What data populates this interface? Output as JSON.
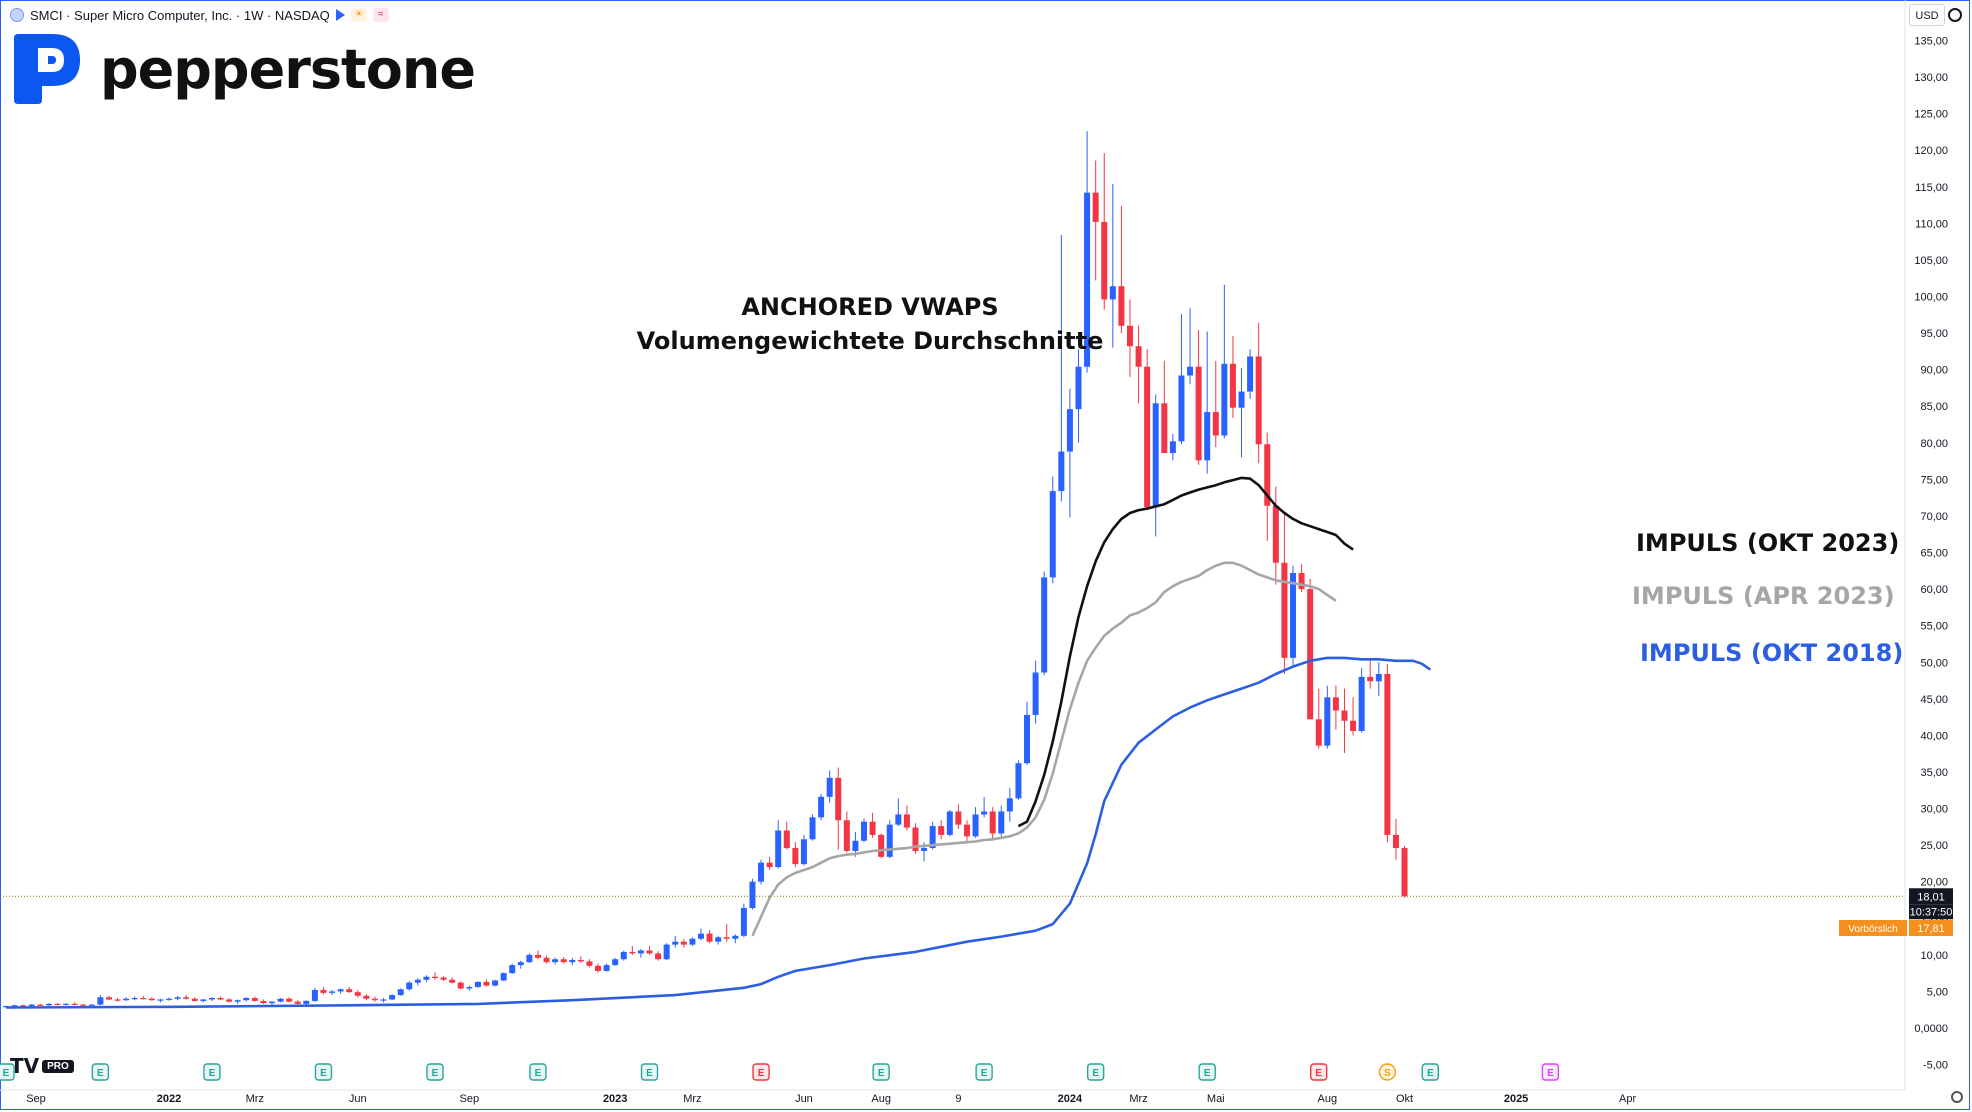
{
  "header": {
    "symbol_line": "SMCI · Super Micro Computer, Inc. · 1W · NASDAQ"
  },
  "brand": {
    "name": "pepperstone",
    "color": "#0c57f0"
  },
  "currency": "USD",
  "tradingview": {
    "mark": "TV",
    "badge": "PRO"
  },
  "title_lines": [
    "ANCHORED VWAPS",
    "Volumengewichtete Durchschnitte"
  ],
  "vwap_labels": [
    {
      "text": "IMPULS (OKT 2023)",
      "color": "#111111"
    },
    {
      "text": "IMPULS (APR 2023)",
      "color": "#a6a6a6"
    },
    {
      "text": "IMPULS (OKT 2018)",
      "color": "#2c5fe0"
    }
  ],
  "chart_data": {
    "type": "candlestick",
    "symbol": "SMCI",
    "interval": "1W",
    "exchange": "NASDAQ",
    "ylim": [
      -5,
      135
    ],
    "y_ticks": [
      "-5,00",
      "0,0000",
      "5,00",
      "10,00",
      "15,00",
      "20,00",
      "25,00",
      "30,00",
      "35,00",
      "40,00",
      "45,00",
      "50,00",
      "55,00",
      "60,00",
      "65,00",
      "70,00",
      "75,00",
      "80,00",
      "85,00",
      "90,00",
      "95,00",
      "100,00",
      "105,00",
      "110,00",
      "115,00",
      "120,00",
      "125,00",
      "130,00",
      "135,00"
    ],
    "x_ticks": [
      {
        "label": "Sep",
        "bar": 0
      },
      {
        "label": "2022",
        "bar": 19
      },
      {
        "label": "Mrz",
        "bar": 29
      },
      {
        "label": "Jun",
        "bar": 41
      },
      {
        "label": "Sep",
        "bar": 54
      },
      {
        "label": "2023",
        "bar": 71
      },
      {
        "label": "Mrz",
        "bar": 80
      },
      {
        "label": "Jun",
        "bar": 93
      },
      {
        "label": "Aug",
        "bar": 102
      },
      {
        "label": "9",
        "bar": 111
      },
      {
        "label": "2024",
        "bar": 124
      },
      {
        "label": "Mrz",
        "bar": 132
      },
      {
        "label": "Mai",
        "bar": 141
      },
      {
        "label": "Aug",
        "bar": 154
      },
      {
        "label": "Okt",
        "bar": 163
      },
      {
        "label": "2025",
        "bar": 176
      },
      {
        "label": "Apr",
        "bar": 189
      }
    ],
    "candles": [
      [
        2.9,
        3.1,
        2.8,
        3.0
      ],
      [
        3.0,
        3.2,
        2.9,
        3.1
      ],
      [
        3.1,
        3.2,
        2.9,
        3.0
      ],
      [
        3.0,
        3.3,
        2.9,
        3.2
      ],
      [
        3.2,
        3.3,
        3.0,
        3.1
      ],
      [
        3.1,
        3.4,
        3.0,
        3.3
      ],
      [
        3.3,
        3.4,
        3.1,
        3.2
      ],
      [
        3.2,
        3.4,
        3.1,
        3.3
      ],
      [
        3.3,
        3.5,
        3.1,
        3.2
      ],
      [
        3.2,
        3.3,
        3.0,
        3.1
      ],
      [
        3.1,
        3.3,
        2.9,
        3.2
      ],
      [
        3.2,
        4.5,
        3.1,
        4.2
      ],
      [
        4.2,
        4.4,
        3.8,
        3.9
      ],
      [
        3.9,
        4.1,
        3.6,
        3.8
      ],
      [
        3.8,
        4.2,
        3.7,
        4.0
      ],
      [
        4.0,
        4.3,
        3.8,
        4.1
      ],
      [
        4.1,
        4.4,
        3.9,
        4.0
      ],
      [
        4.0,
        4.2,
        3.7,
        3.8
      ],
      [
        3.8,
        4.0,
        3.5,
        3.9
      ],
      [
        3.9,
        4.2,
        3.7,
        4.0
      ],
      [
        4.0,
        4.4,
        3.8,
        4.2
      ],
      [
        4.2,
        4.5,
        3.9,
        4.0
      ],
      [
        4.0,
        4.2,
        3.6,
        3.7
      ],
      [
        3.7,
        4.0,
        3.5,
        3.9
      ],
      [
        3.9,
        4.2,
        3.7,
        4.1
      ],
      [
        4.1,
        4.3,
        3.8,
        3.9
      ],
      [
        3.9,
        4.1,
        3.5,
        3.6
      ],
      [
        3.6,
        3.9,
        3.3,
        3.8
      ],
      [
        3.8,
        4.2,
        3.6,
        4.1
      ],
      [
        4.1,
        4.3,
        3.6,
        3.7
      ],
      [
        3.7,
        3.9,
        3.3,
        3.4
      ],
      [
        3.4,
        3.7,
        3.1,
        3.6
      ],
      [
        3.6,
        4.1,
        3.5,
        4.0
      ],
      [
        4.0,
        4.2,
        3.5,
        3.6
      ],
      [
        3.6,
        3.8,
        3.2,
        3.3
      ],
      [
        3.3,
        3.8,
        3.2,
        3.7
      ],
      [
        3.7,
        5.5,
        3.6,
        5.2
      ],
      [
        5.2,
        5.6,
        4.6,
        4.8
      ],
      [
        4.8,
        5.2,
        4.5,
        5.0
      ],
      [
        5.0,
        5.4,
        4.7,
        5.3
      ],
      [
        5.3,
        5.6,
        4.8,
        4.9
      ],
      [
        4.9,
        5.2,
        4.2,
        4.4
      ],
      [
        4.4,
        4.6,
        3.8,
        4.0
      ],
      [
        4.0,
        4.3,
        3.6,
        3.8
      ],
      [
        3.8,
        4.1,
        3.5,
        3.9
      ],
      [
        3.9,
        4.6,
        3.8,
        4.5
      ],
      [
        4.5,
        5.4,
        4.4,
        5.3
      ],
      [
        5.3,
        6.4,
        5.1,
        6.2
      ],
      [
        6.2,
        6.8,
        5.8,
        6.6
      ],
      [
        6.6,
        7.2,
        6.3,
        7.0
      ],
      [
        7.0,
        7.6,
        6.6,
        6.9
      ],
      [
        6.9,
        7.1,
        6.4,
        6.6
      ],
      [
        6.6,
        6.9,
        6.1,
        6.2
      ],
      [
        6.2,
        6.4,
        5.3,
        5.4
      ],
      [
        5.4,
        5.8,
        5.1,
        5.6
      ],
      [
        5.6,
        6.4,
        5.5,
        6.3
      ],
      [
        6.3,
        6.6,
        5.7,
        5.8
      ],
      [
        5.8,
        6.6,
        5.7,
        6.5
      ],
      [
        6.5,
        7.6,
        6.4,
        7.5
      ],
      [
        7.5,
        8.8,
        7.4,
        8.6
      ],
      [
        8.6,
        9.2,
        8.1,
        9.0
      ],
      [
        9.0,
        10.2,
        8.9,
        10.0
      ],
      [
        10.0,
        10.6,
        9.4,
        9.6
      ],
      [
        9.6,
        9.9,
        8.8,
        9.0
      ],
      [
        9.0,
        9.6,
        8.7,
        9.4
      ],
      [
        9.4,
        9.7,
        8.8,
        9.0
      ],
      [
        9.0,
        9.6,
        8.6,
        9.3
      ],
      [
        9.3,
        9.8,
        8.9,
        9.1
      ],
      [
        9.1,
        9.4,
        8.3,
        8.5
      ],
      [
        8.5,
        8.8,
        7.6,
        7.8
      ],
      [
        7.8,
        8.8,
        7.7,
        8.6
      ],
      [
        8.6,
        9.6,
        8.5,
        9.4
      ],
      [
        9.4,
        10.6,
        9.2,
        10.4
      ],
      [
        10.4,
        11.2,
        10.0,
        10.2
      ],
      [
        10.2,
        10.8,
        9.6,
        10.6
      ],
      [
        10.6,
        11.2,
        10.0,
        10.2
      ],
      [
        10.2,
        10.5,
        9.2,
        9.4
      ],
      [
        9.4,
        11.6,
        9.3,
        11.4
      ],
      [
        11.4,
        12.6,
        11.0,
        11.8
      ],
      [
        11.8,
        12.2,
        11.0,
        11.4
      ],
      [
        11.4,
        12.4,
        11.2,
        12.2
      ],
      [
        12.2,
        13.6,
        12.0,
        12.9
      ],
      [
        12.9,
        13.4,
        11.6,
        11.8
      ],
      [
        11.8,
        12.6,
        11.4,
        12.4
      ],
      [
        12.4,
        14.2,
        11.8,
        12.2
      ],
      [
        12.2,
        12.8,
        11.6,
        12.6
      ],
      [
        12.6,
        17.0,
        12.4,
        16.4
      ],
      [
        16.4,
        20.4,
        16.2,
        20.0
      ],
      [
        20.0,
        23.0,
        19.6,
        22.6
      ],
      [
        22.6,
        23.4,
        21.6,
        22.0
      ],
      [
        22.0,
        28.4,
        21.8,
        27.0
      ],
      [
        27.0,
        28.2,
        24.4,
        24.6
      ],
      [
        24.6,
        25.4,
        22.0,
        22.4
      ],
      [
        22.4,
        26.4,
        22.2,
        25.8
      ],
      [
        25.8,
        29.2,
        25.6,
        28.8
      ],
      [
        28.8,
        32.0,
        28.4,
        31.6
      ],
      [
        31.6,
        35.2,
        30.8,
        34.2
      ],
      [
        34.2,
        35.6,
        24.4,
        28.4
      ],
      [
        28.4,
        29.6,
        24.0,
        24.2
      ],
      [
        24.2,
        26.8,
        23.4,
        25.6
      ],
      [
        25.6,
        28.6,
        25.4,
        28.2
      ],
      [
        28.2,
        29.4,
        26.0,
        26.4
      ],
      [
        26.4,
        26.6,
        23.2,
        23.4
      ],
      [
        23.4,
        28.4,
        23.2,
        27.8
      ],
      [
        27.8,
        31.4,
        27.6,
        29.2
      ],
      [
        29.2,
        30.4,
        27.0,
        27.4
      ],
      [
        27.4,
        28.0,
        23.8,
        24.2
      ],
      [
        24.2,
        25.4,
        22.8,
        24.6
      ],
      [
        24.6,
        28.2,
        24.4,
        27.6
      ],
      [
        27.6,
        28.4,
        25.8,
        26.4
      ],
      [
        26.4,
        29.8,
        26.2,
        29.6
      ],
      [
        29.6,
        30.6,
        27.2,
        27.8
      ],
      [
        27.8,
        28.4,
        25.4,
        26.2
      ],
      [
        26.2,
        30.2,
        26.0,
        29.2
      ],
      [
        29.2,
        31.6,
        28.8,
        29.6
      ],
      [
        29.6,
        30.2,
        25.8,
        26.6
      ],
      [
        26.6,
        30.4,
        26.2,
        29.6
      ],
      [
        29.6,
        32.8,
        28.2,
        31.4
      ],
      [
        31.4,
        36.6,
        31.2,
        36.2
      ],
      [
        36.2,
        44.6,
        36.0,
        42.8
      ],
      [
        42.8,
        50.2,
        41.6,
        48.6
      ],
      [
        48.6,
        62.4,
        48.2,
        61.6
      ],
      [
        61.6,
        75.4,
        60.8,
        73.4
      ],
      [
        73.4,
        108.4,
        72.0,
        78.8
      ],
      [
        78.8,
        87.4,
        69.8,
        84.6
      ],
      [
        84.6,
        92.8,
        80.0,
        90.4
      ],
      [
        90.4,
        122.6,
        89.6,
        114.2
      ],
      [
        114.2,
        118.6,
        102.2,
        110.2
      ],
      [
        110.2,
        119.6,
        98.2,
        99.6
      ],
      [
        99.6,
        115.4,
        93.0,
        101.4
      ],
      [
        101.4,
        112.4,
        95.0,
        96.0
      ],
      [
        96.0,
        99.6,
        89.0,
        93.2
      ],
      [
        93.2,
        96.0,
        85.4,
        90.4
      ],
      [
        90.4,
        92.8,
        70.8,
        71.2
      ],
      [
        71.2,
        86.6,
        67.2,
        85.4
      ],
      [
        85.4,
        91.2,
        79.0,
        78.6
      ],
      [
        78.6,
        81.2,
        77.6,
        80.2
      ],
      [
        80.2,
        97.6,
        79.8,
        89.2
      ],
      [
        89.2,
        98.4,
        88.0,
        90.4
      ],
      [
        90.4,
        95.4,
        77.0,
        77.6
      ],
      [
        77.6,
        95.2,
        75.8,
        84.2
      ],
      [
        84.2,
        91.2,
        79.4,
        81.0
      ],
      [
        81.0,
        101.6,
        80.6,
        90.8
      ],
      [
        90.8,
        94.6,
        83.4,
        84.8
      ],
      [
        84.8,
        90.2,
        78.0,
        87.0
      ],
      [
        87.0,
        92.8,
        86.0,
        91.8
      ],
      [
        91.8,
        96.4,
        77.2,
        79.8
      ],
      [
        79.8,
        81.4,
        66.6,
        71.4
      ],
      [
        71.4,
        74.0,
        60.6,
        63.6
      ],
      [
        63.6,
        70.2,
        48.4,
        50.6
      ],
      [
        50.6,
        63.2,
        49.4,
        62.2
      ],
      [
        62.2,
        63.4,
        59.6,
        60.0
      ],
      [
        60.0,
        61.4,
        42.6,
        42.2
      ],
      [
        42.2,
        46.4,
        38.2,
        38.6
      ],
      [
        38.6,
        46.8,
        38.2,
        45.2
      ],
      [
        45.2,
        46.8,
        40.8,
        43.4
      ],
      [
        43.4,
        46.4,
        37.6,
        42.0
      ],
      [
        42.0,
        45.2,
        40.0,
        40.6
      ],
      [
        40.6,
        49.2,
        40.4,
        48.0
      ],
      [
        48.0,
        50.6,
        46.4,
        47.4
      ],
      [
        47.4,
        50.0,
        45.4,
        48.4
      ],
      [
        48.4,
        49.8,
        25.4,
        26.4
      ],
      [
        26.4,
        28.6,
        23.0,
        24.6
      ],
      [
        24.6,
        24.9,
        17.8,
        18.0
      ]
    ],
    "vwaps": [
      {
        "name": "IMPULS (OKT 2023)",
        "anchor": 118,
        "color": "#111111",
        "values": [
          27.6,
          28.2,
          31.0,
          34.6,
          39.2,
          44.6,
          50.8,
          56.2,
          60.4,
          63.8,
          66.4,
          68.2,
          69.6,
          70.4,
          70.8,
          71.0,
          71.3,
          71.6,
          72.2,
          72.8,
          73.2,
          73.6,
          73.9,
          74.2,
          74.6,
          74.9,
          75.2,
          75.1,
          74.2,
          72.8,
          71.4,
          70.4,
          69.6,
          69.0,
          68.6,
          68.2,
          67.8,
          67.4,
          66.2,
          65.4
        ]
      },
      {
        "name": "IMPULS (APR 2023)",
        "anchor": 87,
        "color": "#a6a6a6",
        "values": [
          12.6,
          15.2,
          17.8,
          19.6,
          20.6,
          21.2,
          21.6,
          22.0,
          22.6,
          23.2,
          23.5,
          23.7,
          23.8,
          24.0,
          24.2,
          24.3,
          24.4,
          24.5,
          24.6,
          24.8,
          24.9,
          25.0,
          25.1,
          25.2,
          25.3,
          25.4,
          25.5,
          25.7,
          25.8,
          26.0,
          26.2,
          26.6,
          27.4,
          28.8,
          31.2,
          34.8,
          39.2,
          43.6,
          47.2,
          50.2,
          52.0,
          53.6,
          54.6,
          55.4,
          56.4,
          56.8,
          57.4,
          58.2,
          59.6,
          60.4,
          61.0,
          61.4,
          61.8,
          62.6,
          63.2,
          63.6,
          63.6,
          63.2,
          62.6,
          62.0,
          61.6,
          61.2,
          61.0,
          60.8,
          60.6,
          60.4,
          60.0,
          59.2,
          58.4
        ]
      },
      {
        "name": "IMPULS (OKT 2018)",
        "anchor": 0,
        "color": "#2c5fe0",
        "points": [
          [
            0,
            2.8
          ],
          [
            20,
            2.9
          ],
          [
            40,
            3.1
          ],
          [
            55,
            3.3
          ],
          [
            66,
            3.8
          ],
          [
            78,
            4.5
          ],
          [
            82,
            5.0
          ],
          [
            86,
            5.5
          ],
          [
            88,
            6.0
          ],
          [
            90,
            7.0
          ],
          [
            92,
            7.8
          ],
          [
            96,
            8.6
          ],
          [
            100,
            9.5
          ],
          [
            106,
            10.4
          ],
          [
            112,
            11.8
          ],
          [
            116,
            12.5
          ],
          [
            120,
            13.3
          ],
          [
            122,
            14.2
          ],
          [
            124,
            17.0
          ],
          [
            126,
            22.5
          ],
          [
            127,
            26.5
          ],
          [
            128,
            31.0
          ],
          [
            130,
            36.0
          ],
          [
            132,
            39.0
          ],
          [
            134,
            40.8
          ],
          [
            136,
            42.6
          ],
          [
            138,
            43.8
          ],
          [
            140,
            44.8
          ],
          [
            142,
            45.6
          ],
          [
            144,
            46.4
          ],
          [
            146,
            47.2
          ],
          [
            148,
            48.4
          ],
          [
            150,
            49.4
          ],
          [
            152,
            50.2
          ],
          [
            154,
            50.6
          ],
          [
            156,
            50.6
          ],
          [
            158,
            50.4
          ],
          [
            160,
            50.4
          ],
          [
            162,
            50.2
          ],
          [
            164,
            50.2
          ],
          [
            165,
            49.8
          ],
          [
            166,
            49.0
          ]
        ]
      }
    ],
    "last_price": "18,01",
    "countdown": "10:37:50",
    "premarket_label": "Vorbörslich",
    "premarket_price": "17,81",
    "events": [
      {
        "bar": 0,
        "type": "E"
      },
      {
        "bar": 11,
        "type": "E"
      },
      {
        "bar": 24,
        "type": "E"
      },
      {
        "bar": 37,
        "type": "E"
      },
      {
        "bar": 50,
        "type": "E"
      },
      {
        "bar": 62,
        "type": "E"
      },
      {
        "bar": 75,
        "type": "E"
      },
      {
        "bar": 88,
        "type": "E",
        "red": true
      },
      {
        "bar": 102,
        "type": "E"
      },
      {
        "bar": 114,
        "type": "E"
      },
      {
        "bar": 127,
        "type": "E"
      },
      {
        "bar": 140,
        "type": "E"
      },
      {
        "bar": 153,
        "type": "E",
        "red": true
      },
      {
        "bar": 161,
        "type": "S"
      },
      {
        "bar": 166,
        "type": "E"
      },
      {
        "bar": 180,
        "type": "E"
      }
    ],
    "colors": {
      "up": "#2962ff",
      "down": "#f23645",
      "price_line": "#8a6d00",
      "premarket": "#f5901e"
    }
  }
}
